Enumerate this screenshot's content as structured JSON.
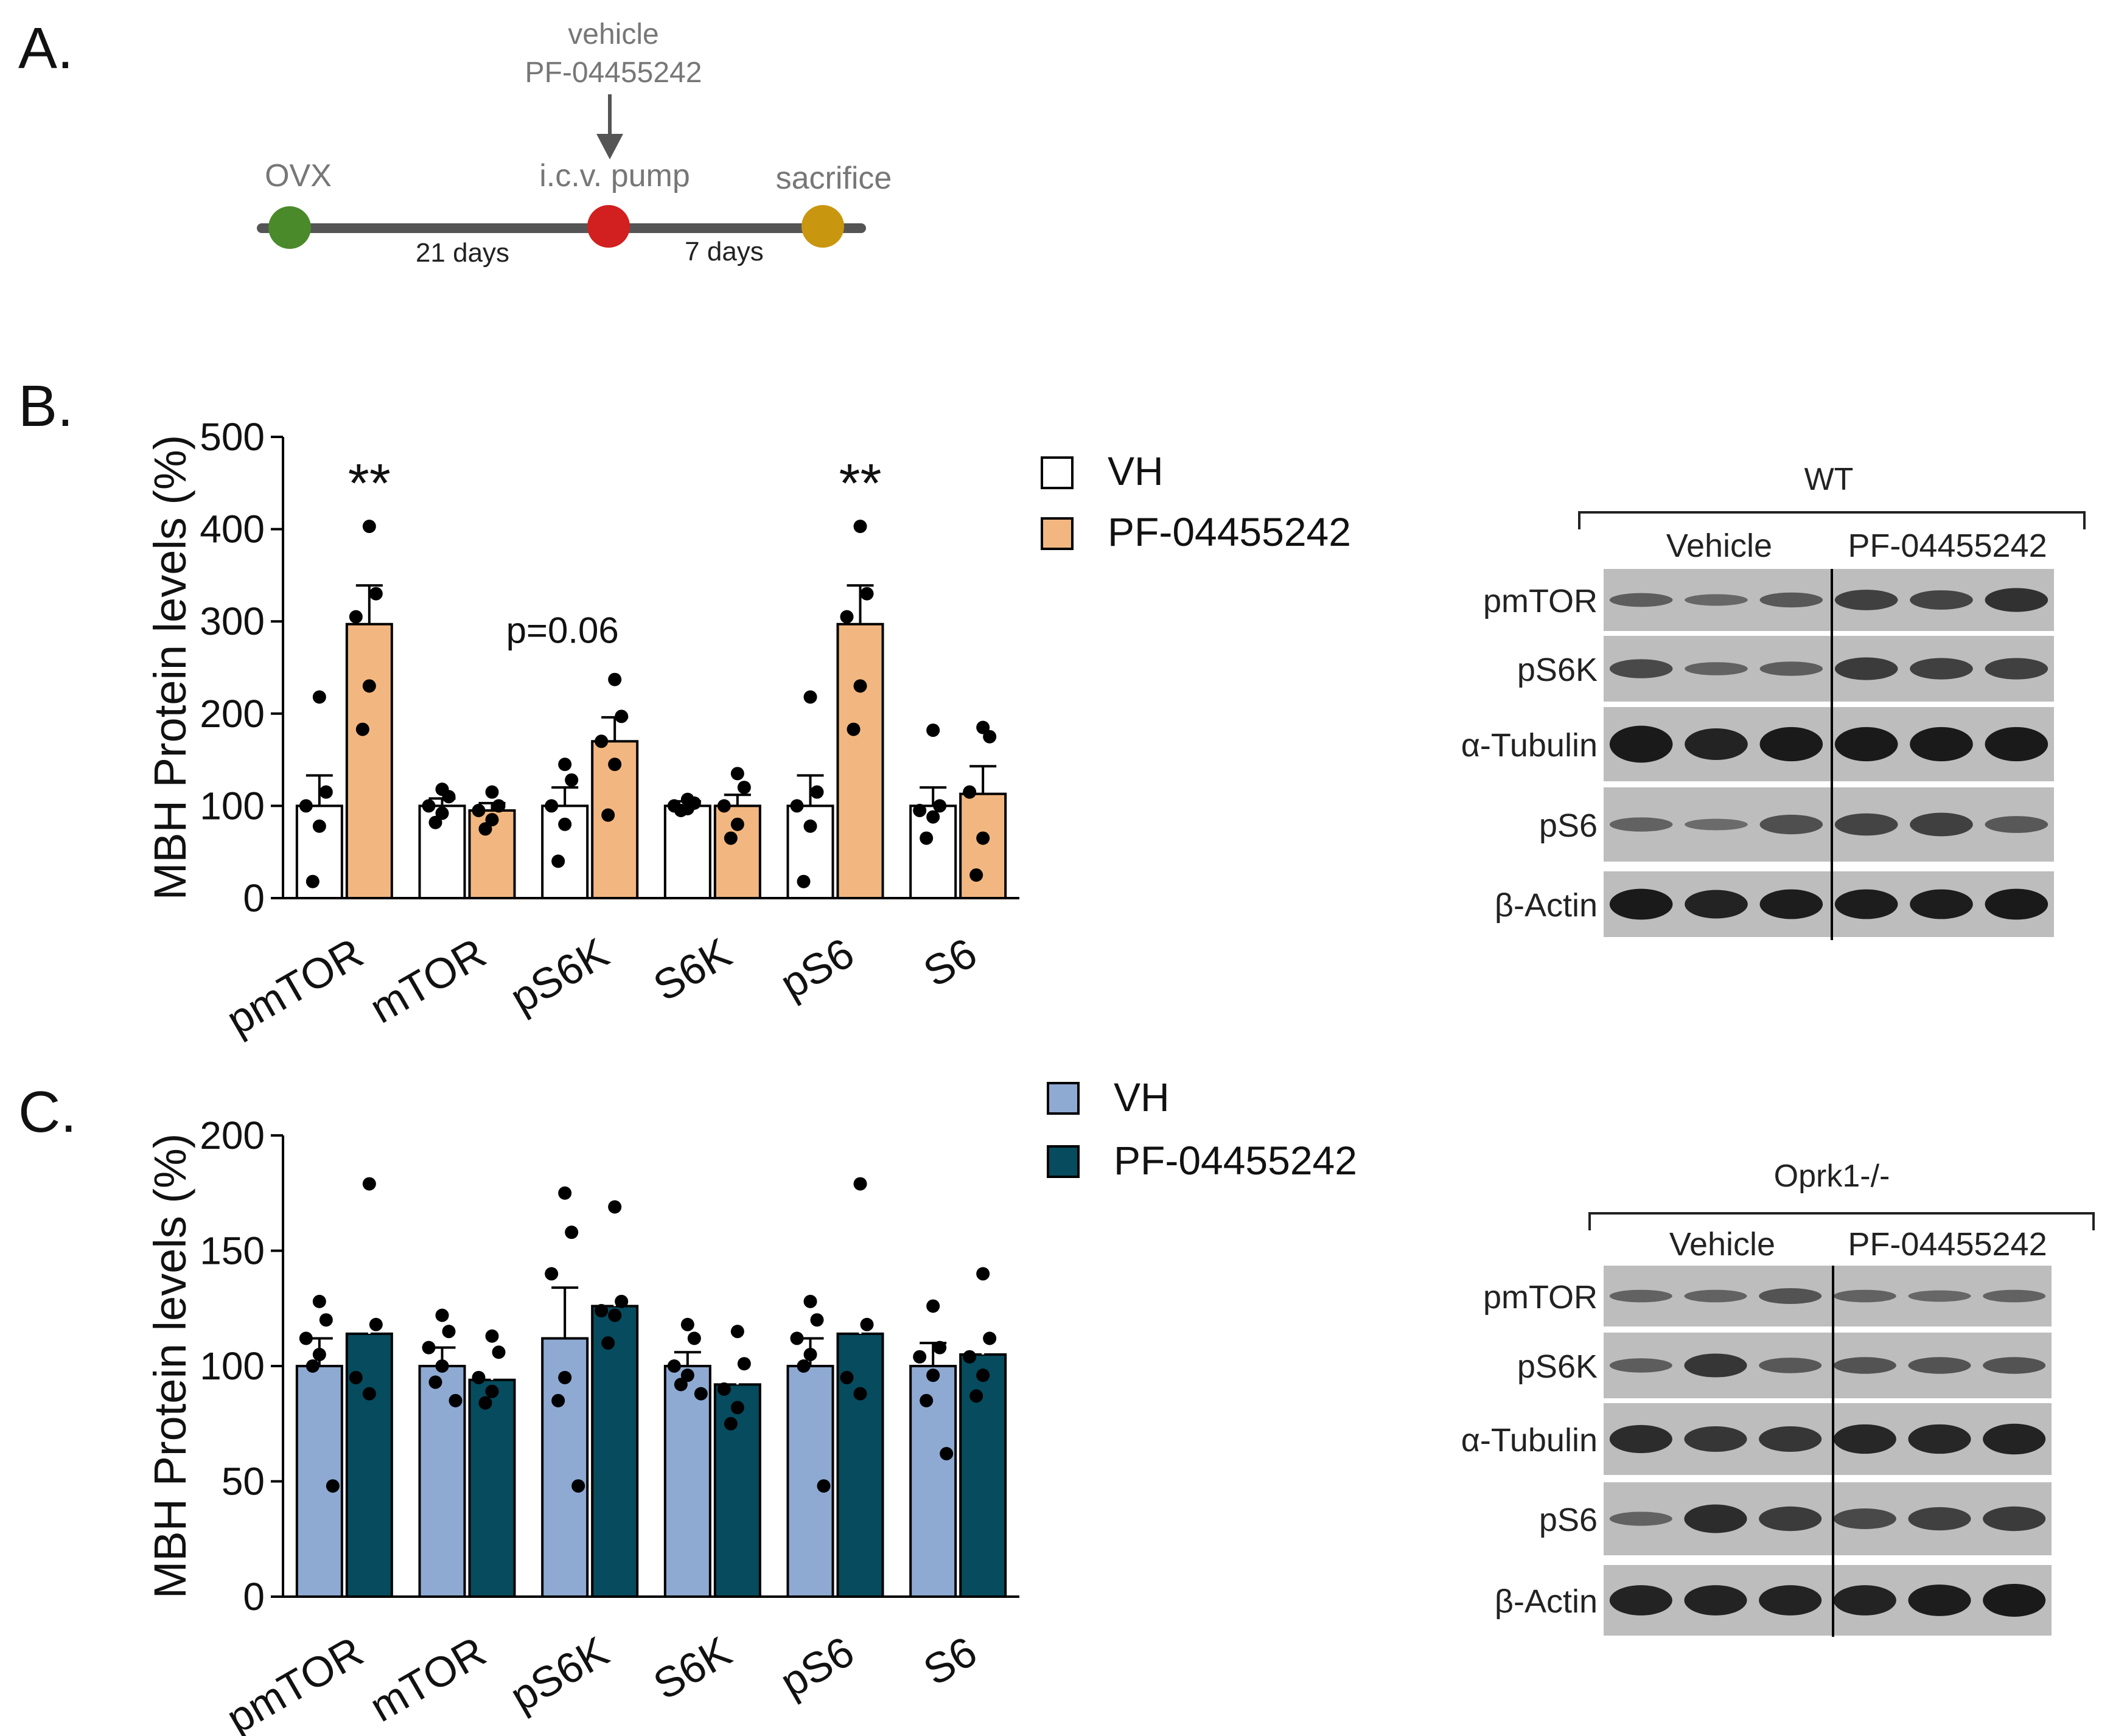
{
  "panel_a": {
    "label": "A.",
    "treatment_line1": "vehicle",
    "treatment_line2": "PF-04455242",
    "events": [
      "OVX",
      "i.c.v. pump",
      "sacrifice"
    ],
    "intervals": [
      "21 days",
      "7 days"
    ],
    "colors": {
      "ovx": "#4a8a2a",
      "pump": "#d21f1f",
      "sacrifice": "#c9960f",
      "line": "#555555",
      "text": "#7a7a7a"
    }
  },
  "panel_b": {
    "label": "B.",
    "legend": [
      "VH",
      "PF-04455242"
    ],
    "colors": {
      "vh": "#ffffff",
      "pf": "#f2b780"
    },
    "p_annotation": "p=0.06",
    "significance": "**",
    "blot": {
      "genotype": "WT",
      "group_labels": [
        "Vehicle",
        "PF-04455242"
      ],
      "rows": [
        "pmTOR",
        "pS6K",
        "α-Tubulin",
        "pS6",
        "β-Actin"
      ]
    }
  },
  "panel_c": {
    "label": "C.",
    "legend": [
      "VH",
      "PF-04455242"
    ],
    "colors": {
      "vh": "#8eaad3",
      "pf": "#064b5e"
    },
    "blot": {
      "genotype": "Oprk1-/-",
      "group_labels": [
        "Vehicle",
        "PF-04455242"
      ],
      "rows": [
        "pmTOR",
        "pS6K",
        "α-Tubulin",
        "pS6",
        "β-Actin"
      ]
    }
  },
  "chart_data": [
    {
      "type": "bar",
      "panel": "B",
      "title": "",
      "ylabel": "MBH Protein levels (%)",
      "xlabel": "",
      "ylim": [
        0,
        500
      ],
      "yticks": [
        0,
        100,
        200,
        300,
        400,
        500
      ],
      "categories": [
        "pmTOR",
        "mTOR",
        "pS6K",
        "S6K",
        "pS6",
        "S6"
      ],
      "series": [
        {
          "name": "VH",
          "values": [
            100,
            100,
            100,
            100,
            100,
            100
          ],
          "sem": [
            33,
            8,
            20,
            5,
            33,
            20
          ],
          "points": [
            [
              218,
              115,
              100,
              78,
              18
            ],
            [
              118,
              110,
              100,
              92,
              82
            ],
            [
              145,
              128,
              100,
              80,
              40
            ],
            [
              107,
              103,
              100,
              97,
              95
            ],
            [
              218,
              115,
              100,
              78,
              18
            ],
            [
              182,
              100,
              95,
              88,
              65
            ]
          ]
        },
        {
          "name": "PF-04455242",
          "values": [
            297,
            95,
            170,
            100,
            297,
            113
          ],
          "sem": [
            42,
            8,
            26,
            12,
            42,
            30
          ],
          "points": [
            [
              403,
              330,
              305,
              230,
              183
            ],
            [
              115,
              100,
              95,
              85,
              75
            ],
            [
              237,
              197,
              170,
              145,
              90
            ],
            [
              135,
              120,
              100,
              80,
              65
            ],
            [
              403,
              330,
              305,
              230,
              183
            ],
            [
              185,
              175,
              115,
              65,
              25
            ]
          ]
        }
      ],
      "annotations": [
        {
          "text": "**",
          "category": "pmTOR",
          "series": "PF-04455242"
        },
        {
          "text": "p=0.06",
          "category": "pS6K",
          "series": "PF-04455242"
        },
        {
          "text": "**",
          "category": "pS6",
          "series": "PF-04455242"
        }
      ],
      "legend_position": "top-right"
    },
    {
      "type": "bar",
      "panel": "C",
      "title": "",
      "ylabel": "MBH Protein levels (%)",
      "xlabel": "",
      "ylim": [
        0,
        200
      ],
      "yticks": [
        0,
        50,
        100,
        150,
        200
      ],
      "categories": [
        "pmTOR",
        "mTOR",
        "pS6K",
        "S6K",
        "pS6",
        "S6"
      ],
      "series": [
        {
          "name": "VH",
          "values": [
            100,
            100,
            112,
            100,
            100,
            100
          ],
          "sem": [
            12,
            8,
            22,
            6,
            12,
            10
          ],
          "points": [
            [
              128,
              120,
              112,
              105,
              100,
              48
            ],
            [
              122,
              115,
              108,
              100,
              93,
              85
            ],
            [
              175,
              158,
              140,
              95,
              85,
              48
            ],
            [
              118,
              112,
              100,
              96,
              92,
              88
            ],
            [
              128,
              120,
              112,
              105,
              100,
              48
            ],
            [
              126,
              108,
              104,
              96,
              85,
              62
            ]
          ]
        },
        {
          "name": "PF-04455242",
          "values": [
            114,
            94,
            126,
            92,
            114,
            105
          ],
          "sem": [
            23,
            6,
            12,
            9,
            23,
            9
          ],
          "points": [
            [
              179,
              118,
              95,
              88
            ],
            [
              113,
              106,
              95,
              89,
              84
            ],
            [
              169,
              128,
              124,
              122,
              110
            ],
            [
              115,
              101,
              90,
              82,
              75
            ],
            [
              179,
              118,
              95,
              88
            ],
            [
              140,
              112,
              104,
              96,
              87
            ]
          ]
        }
      ],
      "legend_position": "top-right"
    }
  ]
}
